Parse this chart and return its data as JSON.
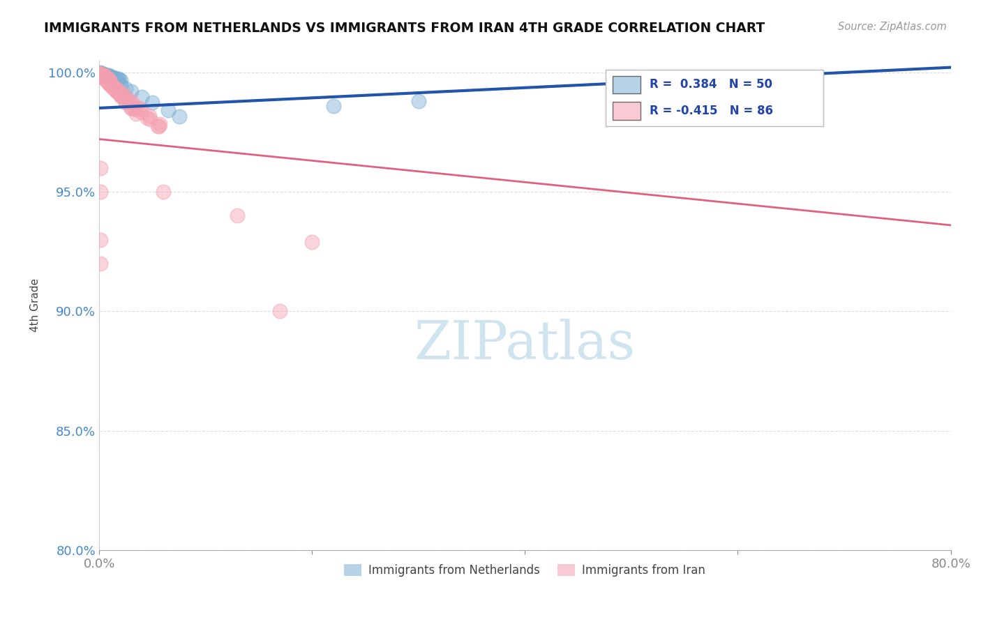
{
  "title": "IMMIGRANTS FROM NETHERLANDS VS IMMIGRANTS FROM IRAN 4TH GRADE CORRELATION CHART",
  "source_text": "Source: ZipAtlas.com",
  "ylabel": "4th Grade",
  "xlim": [
    0.0,
    0.8
  ],
  "ylim": [
    0.8,
    1.005
  ],
  "xticks": [
    0.0,
    0.2,
    0.4,
    0.6,
    0.8
  ],
  "xticklabels": [
    "0.0%",
    "",
    "",
    "",
    "80.0%"
  ],
  "yticks": [
    0.8,
    0.85,
    0.9,
    0.95,
    1.0
  ],
  "yticklabels": [
    "80.0%",
    "85.0%",
    "90.0%",
    "95.0%",
    "100.0%"
  ],
  "netherlands_color": "#7BAFD4",
  "iran_color": "#F4A0B0",
  "netherlands_line_color": "#2255AA",
  "iran_line_color": "#E06080",
  "netherlands_R": 0.384,
  "netherlands_N": 50,
  "iran_R": -0.415,
  "iran_N": 86,
  "watermark": "ZIPatlas",
  "watermark_color": "#D0E4F0",
  "legend_label1": "Immigrants from Netherlands",
  "legend_label2": "Immigrants from Iran",
  "nl_line_x": [
    0.0,
    0.8
  ],
  "nl_line_y": [
    0.985,
    1.002
  ],
  "ir_line_x": [
    0.0,
    0.8
  ],
  "ir_line_y": [
    0.972,
    0.936
  ],
  "netherlands_points_x": [
    0.001,
    0.002,
    0.003,
    0.004,
    0.005,
    0.006,
    0.007,
    0.008,
    0.009,
    0.01,
    0.001,
    0.002,
    0.003,
    0.005,
    0.007,
    0.009,
    0.011,
    0.013,
    0.015,
    0.018,
    0.003,
    0.004,
    0.006,
    0.008,
    0.01,
    0.012,
    0.014,
    0.016,
    0.018,
    0.02,
    0.002,
    0.003,
    0.004,
    0.005,
    0.006,
    0.007,
    0.008,
    0.009,
    0.011,
    0.013,
    0.015,
    0.02,
    0.025,
    0.03,
    0.04,
    0.05,
    0.065,
    0.075,
    0.22,
    0.3
  ],
  "netherlands_points_y": [
    0.9995,
    0.999,
    0.9985,
    0.9985,
    0.999,
    0.9988,
    0.9982,
    0.998,
    0.9988,
    0.9978,
    0.9998,
    0.9995,
    0.9992,
    0.999,
    0.9988,
    0.9985,
    0.9982,
    0.9979,
    0.9976,
    0.9972,
    0.9993,
    0.9991,
    0.9988,
    0.9985,
    0.9982,
    0.9979,
    0.9976,
    0.9973,
    0.997,
    0.9967,
    0.9996,
    0.9993,
    0.999,
    0.9987,
    0.9984,
    0.9981,
    0.9978,
    0.9975,
    0.9969,
    0.9963,
    0.9957,
    0.9945,
    0.9932,
    0.992,
    0.9896,
    0.9872,
    0.984,
    0.9815,
    0.986,
    0.988
  ],
  "iran_points_x": [
    0.001,
    0.002,
    0.003,
    0.004,
    0.005,
    0.006,
    0.007,
    0.008,
    0.009,
    0.01,
    0.001,
    0.002,
    0.003,
    0.004,
    0.005,
    0.006,
    0.008,
    0.01,
    0.012,
    0.015,
    0.002,
    0.003,
    0.005,
    0.007,
    0.01,
    0.013,
    0.016,
    0.02,
    0.025,
    0.03,
    0.003,
    0.005,
    0.007,
    0.01,
    0.013,
    0.016,
    0.02,
    0.025,
    0.03,
    0.035,
    0.005,
    0.008,
    0.012,
    0.016,
    0.021,
    0.027,
    0.034,
    0.04,
    0.048,
    0.056,
    0.002,
    0.004,
    0.006,
    0.01,
    0.015,
    0.021,
    0.028,
    0.036,
    0.045,
    0.055,
    0.003,
    0.005,
    0.008,
    0.012,
    0.017,
    0.023,
    0.03,
    0.038,
    0.047,
    0.057,
    0.001,
    0.003,
    0.006,
    0.01,
    0.015,
    0.02,
    0.026,
    0.033,
    0.001,
    0.13,
    0.001,
    0.2,
    0.06,
    0.001,
    0.17,
    0.001
  ],
  "iran_points_y": [
    0.9993,
    0.9988,
    0.9984,
    0.9979,
    0.9986,
    0.9982,
    0.9978,
    0.9974,
    0.997,
    0.9966,
    0.9996,
    0.9991,
    0.9986,
    0.9981,
    0.9976,
    0.9971,
    0.9961,
    0.9951,
    0.9941,
    0.9926,
    0.9989,
    0.9984,
    0.9974,
    0.9964,
    0.9949,
    0.9934,
    0.9919,
    0.9899,
    0.9874,
    0.9849,
    0.9986,
    0.9976,
    0.9966,
    0.9951,
    0.9936,
    0.9921,
    0.9901,
    0.9876,
    0.9851,
    0.9826,
    0.9974,
    0.9961,
    0.9944,
    0.9927,
    0.9907,
    0.9884,
    0.9858,
    0.9832,
    0.9803,
    0.9773,
    0.9991,
    0.9982,
    0.9973,
    0.9955,
    0.9932,
    0.9906,
    0.9877,
    0.9845,
    0.981,
    0.9773,
    0.9988,
    0.9979,
    0.9966,
    0.9949,
    0.9929,
    0.9906,
    0.988,
    0.9851,
    0.9819,
    0.9784,
    0.9994,
    0.9985,
    0.9971,
    0.9953,
    0.9931,
    0.9906,
    0.9878,
    0.9847,
    0.95,
    0.94,
    0.93,
    0.929,
    0.95,
    0.92,
    0.9,
    0.96
  ]
}
